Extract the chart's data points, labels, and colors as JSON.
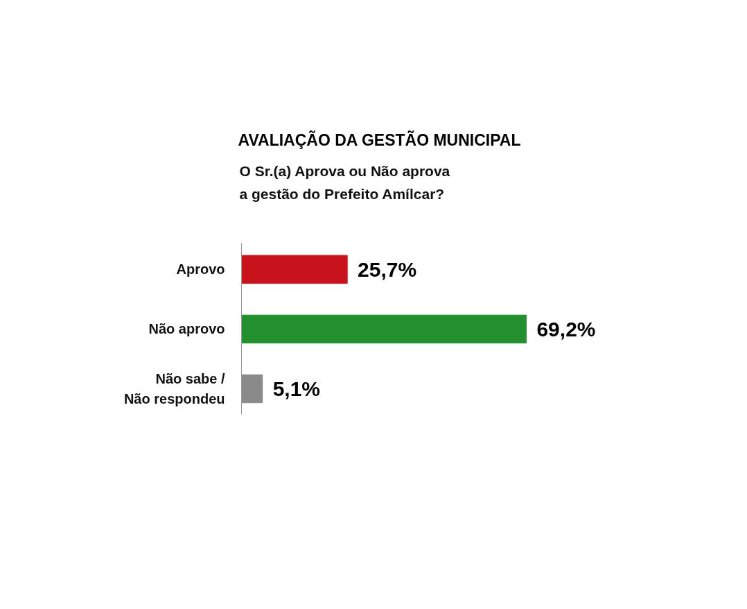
{
  "chart_data": {
    "type": "bar",
    "orientation": "horizontal",
    "title": "AVALIAÇÃO DA GESTÃO MUNICIPAL",
    "subtitle": "O Sr.(a) Aprova ou Não aprova\na gestão do Prefeito Amílcar?",
    "categories": [
      "Aprovo",
      "Não aprovo",
      "Não sabe / Não respondeu"
    ],
    "values": [
      25.7,
      69.2,
      5.1
    ],
    "colors": [
      "#c8121c",
      "#23902f",
      "#8a8a8a"
    ],
    "value_labels": [
      "25,7%",
      "69,2%",
      "5,1%"
    ],
    "grid": false,
    "tick_labels": "y"
  }
}
